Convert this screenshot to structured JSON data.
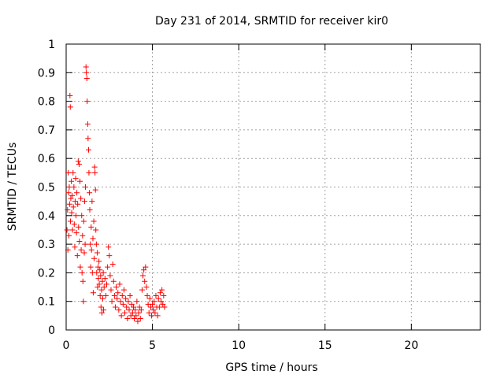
{
  "chart_data": {
    "type": "scatter",
    "title": "Day 231 of 2014, SRMTID for receiver kir0",
    "xlabel": "GPS time / hours",
    "ylabel": "SRMTID / TECUs",
    "xlim": [
      0,
      24
    ],
    "ylim": [
      0,
      1
    ],
    "grid": true,
    "marker": "+",
    "color": "#ff0000",
    "x_ticks": [
      0,
      5,
      10,
      15,
      20
    ],
    "y_ticks": [
      0,
      0.1,
      0.2,
      0.3,
      0.4,
      0.5,
      0.6,
      0.7,
      0.8,
      0.9,
      1
    ],
    "x_tick_labels": [
      "0",
      "5",
      "10",
      "15",
      "20"
    ],
    "y_tick_labels": [
      "0",
      "0.1",
      "0.2",
      "0.3",
      "0.4",
      "0.5",
      "0.6",
      "0.7",
      "0.8",
      "0.9",
      "1"
    ],
    "series": [
      {
        "name": "kir0",
        "points": [
          [
            0.05,
            0.35
          ],
          [
            0.08,
            0.42
          ],
          [
            0.1,
            0.28
          ],
          [
            0.12,
            0.55
          ],
          [
            0.14,
            0.48
          ],
          [
            0.16,
            0.33
          ],
          [
            0.18,
            0.5
          ],
          [
            0.2,
            0.44
          ],
          [
            0.22,
            0.82
          ],
          [
            0.24,
            0.78
          ],
          [
            0.25,
            0.38
          ],
          [
            0.27,
            0.46
          ],
          [
            0.3,
            0.52
          ],
          [
            0.32,
            0.41
          ],
          [
            0.35,
            0.47
          ],
          [
            0.37,
            0.35
          ],
          [
            0.4,
            0.55
          ],
          [
            0.42,
            0.43
          ],
          [
            0.45,
            0.5
          ],
          [
            0.47,
            0.37
          ],
          [
            0.5,
            0.29
          ],
          [
            0.52,
            0.45
          ],
          [
            0.55,
            0.53
          ],
          [
            0.57,
            0.4
          ],
          [
            0.6,
            0.34
          ],
          [
            0.62,
            0.48
          ],
          [
            0.65,
            0.26
          ],
          [
            0.67,
            0.44
          ],
          [
            0.7,
            0.59
          ],
          [
            0.72,
            0.36
          ],
          [
            0.75,
            0.58
          ],
          [
            0.77,
            0.31
          ],
          [
            0.8,
            0.52
          ],
          [
            0.82,
            0.22
          ],
          [
            0.85,
            0.46
          ],
          [
            0.87,
            0.28
          ],
          [
            0.9,
            0.4
          ],
          [
            0.92,
            0.2
          ],
          [
            0.95,
            0.33
          ],
          [
            0.97,
            0.17
          ],
          [
            1.0,
            0.1
          ],
          [
            1.02,
            0.38
          ],
          [
            1.05,
            0.27
          ],
          [
            1.07,
            0.45
          ],
          [
            1.1,
            0.3
          ],
          [
            1.12,
            0.5
          ],
          [
            1.15,
            0.92
          ],
          [
            1.17,
            0.9
          ],
          [
            1.2,
            0.88
          ],
          [
            1.22,
            0.8
          ],
          [
            1.25,
            0.72
          ],
          [
            1.27,
            0.67
          ],
          [
            1.3,
            0.63
          ],
          [
            1.32,
            0.55
          ],
          [
            1.35,
            0.48
          ],
          [
            1.37,
            0.42
          ],
          [
            1.4,
            0.3
          ],
          [
            1.42,
            0.22
          ],
          [
            1.45,
            0.36
          ],
          [
            1.47,
            0.28
          ],
          [
            1.5,
            0.45
          ],
          [
            1.52,
            0.2
          ],
          [
            1.55,
            0.32
          ],
          [
            1.57,
            0.13
          ],
          [
            1.6,
            0.38
          ],
          [
            1.62,
            0.25
          ],
          [
            1.65,
            0.57
          ],
          [
            1.67,
            0.55
          ],
          [
            1.7,
            0.49
          ],
          [
            1.72,
            0.35
          ],
          [
            1.75,
            0.3
          ],
          [
            1.77,
            0.2
          ],
          [
            1.8,
            0.27
          ],
          [
            1.82,
            0.15
          ],
          [
            1.85,
            0.22
          ],
          [
            1.87,
            0.18
          ],
          [
            1.9,
            0.24
          ],
          [
            1.92,
            0.16
          ],
          [
            1.95,
            0.21
          ],
          [
            1.97,
            0.12
          ],
          [
            2.0,
            0.19
          ],
          [
            2.02,
            0.08
          ],
          [
            2.05,
            0.14
          ],
          [
            2.07,
            0.06
          ],
          [
            2.1,
            0.17
          ],
          [
            2.12,
            0.11
          ],
          [
            2.15,
            0.2
          ],
          [
            2.17,
            0.07
          ],
          [
            2.2,
            0.15
          ],
          [
            2.25,
            0.18
          ],
          [
            2.3,
            0.12
          ],
          [
            2.35,
            0.16
          ],
          [
            2.4,
            0.22
          ],
          [
            2.45,
            0.29
          ],
          [
            2.5,
            0.26
          ],
          [
            2.55,
            0.19
          ],
          [
            2.6,
            0.14
          ],
          [
            2.65,
            0.1
          ],
          [
            2.7,
            0.23
          ],
          [
            2.75,
            0.17
          ],
          [
            2.8,
            0.12
          ],
          [
            2.85,
            0.08
          ],
          [
            2.9,
            0.15
          ],
          [
            2.95,
            0.11
          ],
          [
            3.0,
            0.13
          ],
          [
            3.05,
            0.07
          ],
          [
            3.1,
            0.16
          ],
          [
            3.15,
            0.1
          ],
          [
            3.2,
            0.05
          ],
          [
            3.25,
            0.12
          ],
          [
            3.3,
            0.09
          ],
          [
            3.35,
            0.14
          ],
          [
            3.4,
            0.06
          ],
          [
            3.45,
            0.11
          ],
          [
            3.5,
            0.08
          ],
          [
            3.55,
            0.04
          ],
          [
            3.6,
            0.1
          ],
          [
            3.65,
            0.07
          ],
          [
            3.7,
            0.12
          ],
          [
            3.75,
            0.05
          ],
          [
            3.8,
            0.09
          ],
          [
            3.85,
            0.06
          ],
          [
            3.9,
            0.08
          ],
          [
            3.95,
            0.04
          ],
          [
            4.0,
            0.07
          ],
          [
            4.05,
            0.05
          ],
          [
            4.1,
            0.1
          ],
          [
            4.15,
            0.03
          ],
          [
            4.2,
            0.06
          ],
          [
            4.25,
            0.08
          ],
          [
            4.3,
            0.04
          ],
          [
            4.35,
            0.07
          ],
          [
            4.4,
            0.14
          ],
          [
            4.45,
            0.19
          ],
          [
            4.5,
            0.21
          ],
          [
            4.55,
            0.17
          ],
          [
            4.6,
            0.22
          ],
          [
            4.65,
            0.15
          ],
          [
            4.7,
            0.12
          ],
          [
            4.75,
            0.09
          ],
          [
            4.8,
            0.06
          ],
          [
            4.85,
            0.11
          ],
          [
            4.9,
            0.08
          ],
          [
            4.95,
            0.05
          ],
          [
            5.0,
            0.09
          ],
          [
            5.05,
            0.07
          ],
          [
            5.1,
            0.1
          ],
          [
            5.15,
            0.06
          ],
          [
            5.2,
            0.12
          ],
          [
            5.25,
            0.08
          ],
          [
            5.3,
            0.05
          ],
          [
            5.35,
            0.11
          ],
          [
            5.4,
            0.08
          ],
          [
            5.45,
            0.13
          ],
          [
            5.5,
            0.1
          ],
          [
            5.55,
            0.14
          ],
          [
            5.6,
            0.09
          ],
          [
            5.65,
            0.12
          ],
          [
            5.7,
            0.08
          ]
        ]
      }
    ]
  }
}
